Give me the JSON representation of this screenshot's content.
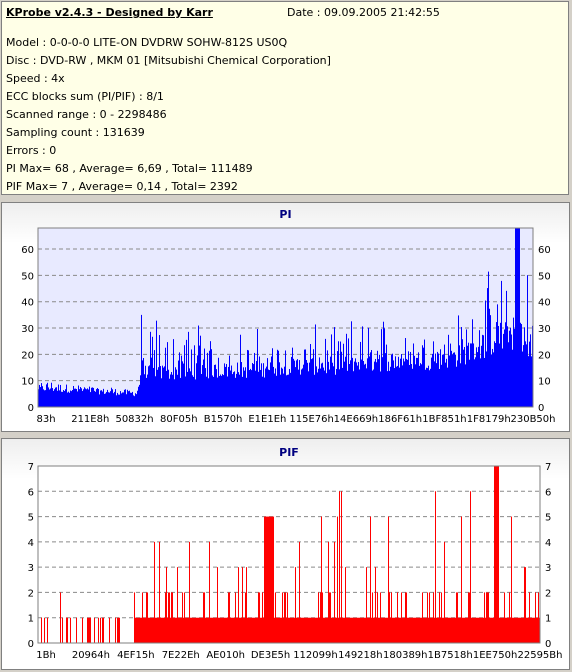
{
  "info": {
    "title": "KProbe v2.4.3 - Designed by Karr",
    "date": "Date : 09.09.2005 21:42:55",
    "lines": [
      "Model : 0-0-0-0 LITE-ON DVDRW SOHW-812S  US0Q",
      "Disc : DVD-RW , MKM 01 [Mitsubishi Chemical Corporation]",
      "Speed : 4x",
      "ECC blocks sum (PI/PIF) : 8/1",
      "Scanned range : 0 - 2298486",
      "Sampling count : 131639",
      "Errors : 0",
      "PI Max= 68 , Average= 6,69 , Total= 111489",
      "PIF Max= 7 , Average= 0,14 , Total= 2392"
    ]
  },
  "chart_data": [
    {
      "type": "bar",
      "title": "PI",
      "color": "#0000ff",
      "ylim": [
        0,
        68
      ],
      "yticks": [
        0,
        10,
        20,
        30,
        40,
        50,
        60
      ],
      "xticks": [
        "83h",
        "211E8h",
        "50832h",
        "80F05h",
        "B1570h",
        "E1E1Eh",
        "115E76h",
        "14E669h",
        "186F61h",
        "1BF851h",
        "1F8179h",
        "230B50h"
      ],
      "grid": true,
      "profile": [
        [
          0.0,
          6,
          10
        ],
        [
          0.2,
          4,
          8
        ],
        [
          0.21,
          10,
          42
        ],
        [
          0.45,
          11,
          30
        ],
        [
          0.5,
          12,
          32
        ],
        [
          0.6,
          12,
          31
        ],
        [
          0.65,
          13,
          36
        ],
        [
          0.8,
          14,
          36
        ],
        [
          0.85,
          15,
          40
        ],
        [
          0.9,
          18,
          52
        ],
        [
          0.94,
          20,
          55
        ],
        [
          0.97,
          22,
          68
        ],
        [
          1.0,
          15,
          50
        ]
      ]
    },
    {
      "type": "bar",
      "title": "PIF",
      "color": "#ff0000",
      "ylim": [
        0,
        7
      ],
      "yticks": [
        0,
        1,
        2,
        3,
        4,
        5,
        6,
        7
      ],
      "xticks": [
        "1Bh",
        "20964h",
        "4EF15h",
        "7E22Eh",
        "AE010h",
        "DE3E5h",
        "112099h",
        "149218h",
        "180389h",
        "1B7518h",
        "1EE750h",
        "22595Bh"
      ],
      "grid": true
    }
  ]
}
